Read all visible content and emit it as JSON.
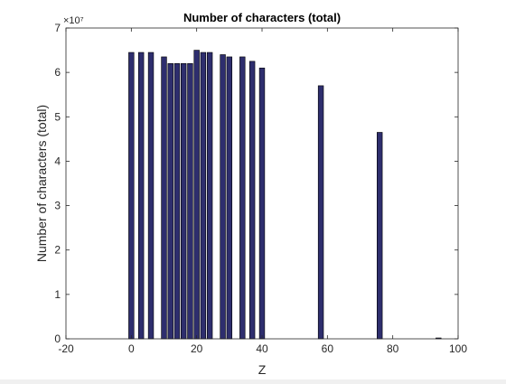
{
  "chart_data": {
    "type": "bar",
    "title": "Number of characters (total)",
    "xlabel": "Z",
    "ylabel": "Number of characters (total)",
    "y_exponent_label": "×10⁷",
    "xlim": [
      -20,
      100
    ],
    "ylim": [
      0,
      7
    ],
    "y_scale_multiplier": 10000000,
    "x_ticks": [
      -20,
      0,
      20,
      40,
      60,
      80,
      100
    ],
    "x_tick_labels": [
      "-20",
      "0",
      "20",
      "40",
      "60",
      "80",
      "100"
    ],
    "y_ticks": [
      0,
      1,
      2,
      3,
      4,
      5,
      6,
      7
    ],
    "y_tick_labels": [
      "0",
      "1",
      "2",
      "3",
      "4",
      "5",
      "6",
      "7"
    ],
    "grid": false,
    "legend": "none",
    "bar_color": "#2e2e6e",
    "bar_edge_color": "#000000",
    "bar_width": 1.6,
    "x": [
      0,
      3,
      6,
      10,
      12,
      14,
      16,
      18,
      20,
      22,
      24,
      28,
      30,
      34,
      37,
      40,
      58,
      76,
      94
    ],
    "values": [
      6.45,
      6.45,
      6.45,
      6.35,
      6.2,
      6.2,
      6.2,
      6.2,
      6.5,
      6.45,
      6.45,
      6.4,
      6.35,
      6.35,
      6.25,
      6.1,
      5.7,
      4.65,
      0.02
    ]
  }
}
